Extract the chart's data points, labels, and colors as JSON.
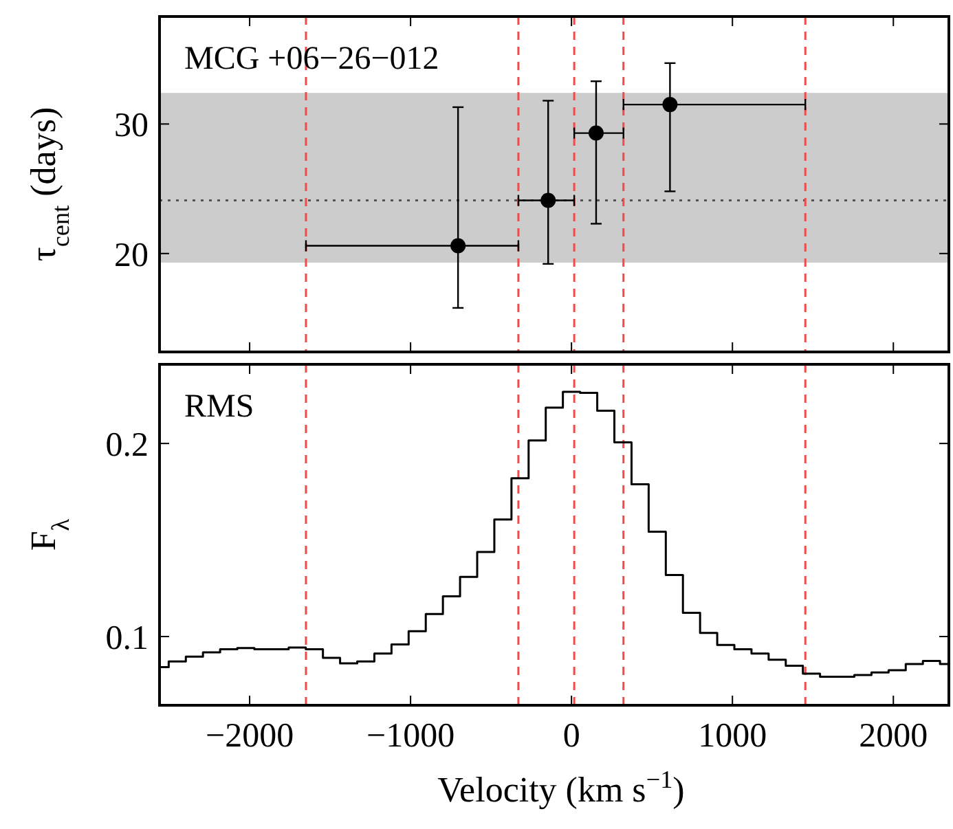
{
  "chart_data": [
    {
      "type": "scatter",
      "ylabel": "τ$_{cent}$ (days)",
      "annotations": [
        "MCG +06−26−012"
      ],
      "xlim": [
        -2560,
        2345
      ],
      "xticks": [
        -2000,
        -1000,
        0,
        1000,
        2000
      ],
      "ylim": [
        12.4,
        38.3
      ],
      "yticks": [
        20,
        30
      ],
      "tick_labels": "y",
      "grid": false,
      "marker": "circle",
      "series": [
        {
          "color": "#000000",
          "x": [
            -705,
            -145,
            153,
            612
          ],
          "values": [
            20.6,
            24.1,
            29.3,
            31.5
          ],
          "errors": [
            [
              15.8,
              31.3
            ],
            [
              19.2,
              31.8
            ],
            [
              22.3,
              33.3
            ],
            [
              24.8,
              34.7
            ]
          ],
          "xerrors": [
            [
              -1650,
              -330
            ],
            [
              -330,
              17
            ],
            [
              17,
              323
            ],
            [
              323,
              1453
            ]
          ]
        }
      ],
      "bands": [
        {
          "axis": "y",
          "from": 19.3,
          "to": 32.4,
          "color": "#cccccc"
        }
      ],
      "ref_lines": [
        {
          "axis": "y",
          "value": 24.1,
          "color": "#555555",
          "line_style": "dotted"
        },
        {
          "axis": "x",
          "value": -1650,
          "color": "#f04a4a",
          "line_style": "dashed"
        },
        {
          "axis": "x",
          "value": -330,
          "color": "#f04a4a",
          "line_style": "dashed"
        },
        {
          "axis": "x",
          "value": 17,
          "color": "#f04a4a",
          "line_style": "dashed"
        },
        {
          "axis": "x",
          "value": 323,
          "color": "#f04a4a",
          "line_style": "dashed"
        },
        {
          "axis": "x",
          "value": 1453,
          "color": "#f04a4a",
          "line_style": "dashed"
        }
      ]
    },
    {
      "type": "step",
      "xlabel": "Velocity (km s$^{−1}$)",
      "ylabel": "F$_{λ}$",
      "annotations": [
        "RMS"
      ],
      "xlim": [
        -2560,
        2345
      ],
      "xticks": [
        -2000,
        -1000,
        0,
        1000,
        2000
      ],
      "ylim": [
        0.0644,
        0.241
      ],
      "yticks": [
        0.1,
        0.2
      ],
      "grid": false,
      "marker": "none",
      "series": [
        {
          "color": "#000000",
          "x": [
            -2556,
            -2450,
            -2343,
            -2237,
            -2130,
            -2024,
            -1917,
            -1811,
            -1704,
            -1598,
            -1491,
            -1385,
            -1278,
            -1172,
            -1065,
            -959,
            -852,
            -746,
            -639,
            -533,
            -426,
            -320,
            -213,
            -107,
            0,
            107,
            213,
            320,
            426,
            533,
            639,
            746,
            852,
            959,
            1065,
            1172,
            1278,
            1385,
            1491,
            1598,
            1704,
            1811,
            1917,
            2024,
            2130,
            2237,
            2343
          ],
          "values": [
            0.0842,
            0.0871,
            0.0896,
            0.0918,
            0.0934,
            0.094,
            0.0934,
            0.0934,
            0.0943,
            0.0934,
            0.089,
            0.0861,
            0.0871,
            0.0912,
            0.0959,
            0.1028,
            0.1117,
            0.1208,
            0.1309,
            0.1438,
            0.1606,
            0.182,
            0.2016,
            0.2186,
            0.2268,
            0.2262,
            0.217,
            0.2006,
            0.1789,
            0.1543,
            0.1319,
            0.1123,
            0.1019,
            0.0956,
            0.0934,
            0.0912,
            0.088,
            0.0849,
            0.0808,
            0.0792,
            0.0792,
            0.0801,
            0.0814,
            0.0826,
            0.0858,
            0.0874,
            0.0858
          ]
        }
      ],
      "ref_lines": [
        {
          "axis": "x",
          "value": -1650,
          "color": "#f04a4a",
          "line_style": "dashed"
        },
        {
          "axis": "x",
          "value": -330,
          "color": "#f04a4a",
          "line_style": "dashed"
        },
        {
          "axis": "x",
          "value": 17,
          "color": "#f04a4a",
          "line_style": "dashed"
        },
        {
          "axis": "x",
          "value": 323,
          "color": "#f04a4a",
          "line_style": "dashed"
        },
        {
          "axis": "x",
          "value": 1453,
          "color": "#f04a4a",
          "line_style": "dashed"
        }
      ]
    }
  ]
}
